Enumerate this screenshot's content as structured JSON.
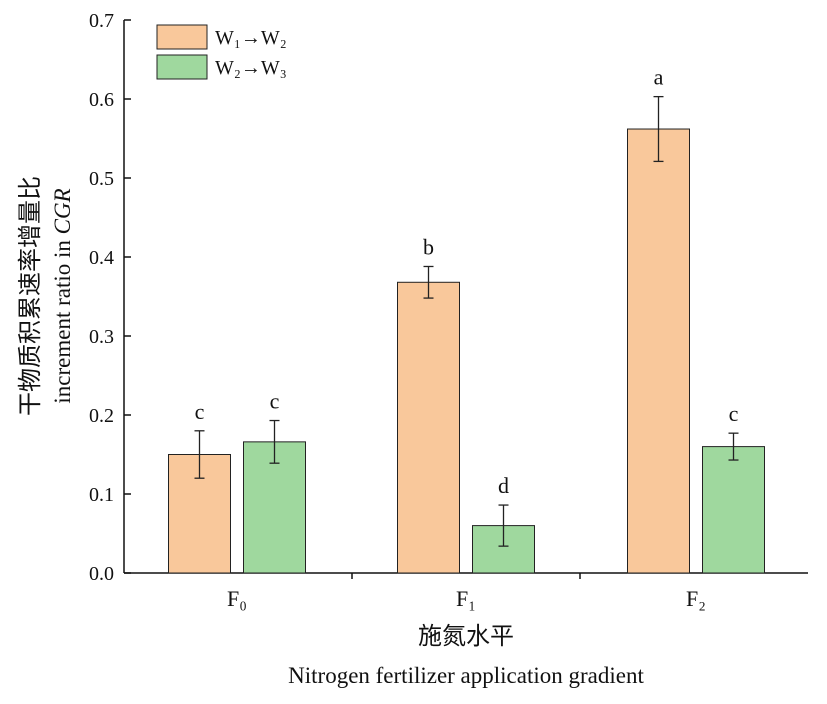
{
  "chart_data": {
    "type": "bar",
    "categories": [
      "F₀",
      "F₁",
      "F₂"
    ],
    "series": [
      {
        "name": "W₁→W₂",
        "color": "#f9c89b",
        "values": [
          0.15,
          0.368,
          0.562
        ],
        "errors": [
          0.03,
          0.02,
          0.041
        ],
        "labels": [
          "c",
          "b",
          "a"
        ]
      },
      {
        "name": "W₂→W₃",
        "color": "#9fd89e",
        "values": [
          0.166,
          0.06,
          0.16
        ],
        "errors": [
          0.027,
          0.026,
          0.017
        ],
        "labels": [
          "c",
          "d",
          "c"
        ]
      }
    ],
    "ylim": [
      0,
      0.7
    ],
    "yticks": [
      "0.0",
      "0.1",
      "0.2",
      "0.3",
      "0.4",
      "0.5",
      "0.6",
      "0.7"
    ],
    "xlabel_cn": "施氮水平",
    "xlabel_en": "Nitrogen fertilizer application gradient",
    "ylabel_cn": "干物质积累速率增量比",
    "ylabel_en_prefix": "increment ratio in ",
    "ylabel_en_italic": "CGR",
    "legend_position": "top-left",
    "grid": false
  }
}
